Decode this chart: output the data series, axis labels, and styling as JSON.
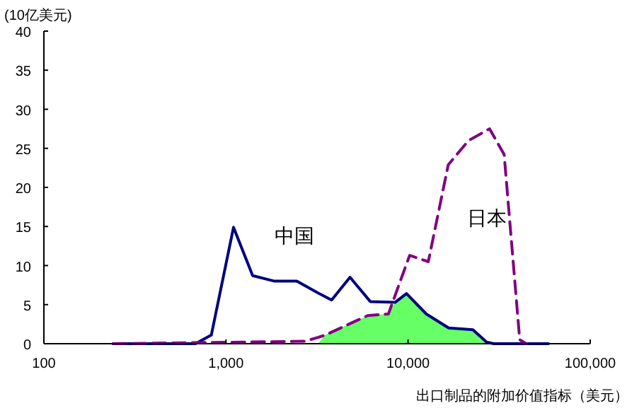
{
  "chart_data": {
    "type": "line",
    "ylabel": "(10亿美元)",
    "xlabel": "出口制品的附加价值指标（美元）",
    "log": "x",
    "xlim": [
      100,
      100000
    ],
    "xticks": [
      {
        "value": 100,
        "label": "100"
      },
      {
        "value": 1000,
        "label": "1,000"
      },
      {
        "value": 10000,
        "label": "10,000"
      },
      {
        "value": 100000,
        "label": "100,000"
      }
    ],
    "ylim": [
      0,
      40
    ],
    "yticks": [
      0,
      5,
      10,
      15,
      20,
      25,
      30,
      35,
      40
    ],
    "grid": false,
    "marker": "none",
    "series": [
      {
        "type": "area",
        "color": "#66ff66",
        "x": [
          3200,
          3500,
          6000,
          7800,
          8500,
          9800,
          12600,
          16700,
          22700,
          27000,
          29500
        ],
        "values": [
          0,
          1.1,
          3.6,
          3.8,
          5.3,
          6.4,
          3.8,
          2.0,
          1.8,
          0.2,
          0
        ]
      },
      {
        "name": "中国",
        "color": "#000080",
        "line_style": "solid",
        "x": [
          240,
          680,
          830,
          1100,
          1400,
          1850,
          2450,
          3200,
          3800,
          4800,
          6200,
          8500,
          9800,
          12600,
          16700,
          22700,
          27000,
          29500,
          59000
        ],
        "values": [
          0,
          0,
          1.1,
          14.9,
          8.7,
          8.0,
          8.0,
          6.5,
          5.6,
          8.5,
          5.4,
          5.3,
          6.4,
          3.8,
          2.0,
          1.8,
          0.2,
          0,
          0
        ]
      },
      {
        "name": "日本",
        "color": "#800080",
        "line_style": "dashed",
        "x": [
          240,
          2700,
          3200,
          3500,
          6000,
          7800,
          10200,
          12900,
          16600,
          21500,
          28000,
          33700,
          41000,
          44500
        ],
        "values": [
          0,
          0.3,
          0.8,
          1.1,
          3.6,
          3.8,
          11.3,
          10.5,
          22.9,
          26,
          27.5,
          24.2,
          0.5,
          0
        ]
      }
    ]
  }
}
